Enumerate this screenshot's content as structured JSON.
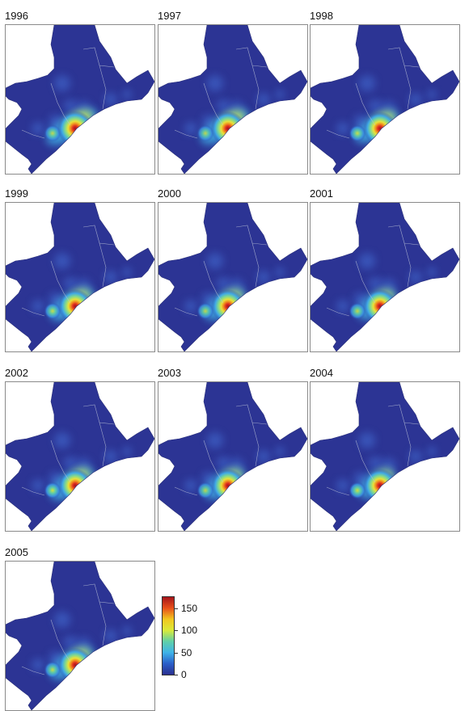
{
  "panels": [
    {
      "year": "1996",
      "hot": 1.0,
      "spread": 1.0,
      "west": 0.55,
      "westHot": 0.45
    },
    {
      "year": "1997",
      "hot": 0.97,
      "spread": 0.95,
      "west": 0.55,
      "westHot": 0.42
    },
    {
      "year": "1998",
      "hot": 0.95,
      "spread": 0.85,
      "west": 0.55,
      "westHot": 0.5
    },
    {
      "year": "1999",
      "hot": 0.96,
      "spread": 0.85,
      "west": 0.55,
      "westHot": 0.5
    },
    {
      "year": "2000",
      "hot": 0.96,
      "spread": 0.8,
      "west": 0.55,
      "westHot": 0.45
    },
    {
      "year": "2001",
      "hot": 0.96,
      "spread": 0.75,
      "west": 0.55,
      "westHot": 0.48
    },
    {
      "year": "2002",
      "hot": 0.95,
      "spread": 0.85,
      "west": 0.55,
      "westHot": 0.55
    },
    {
      "year": "2003",
      "hot": 0.95,
      "spread": 0.78,
      "west": 0.55,
      "westHot": 0.45
    },
    {
      "year": "2004",
      "hot": 0.95,
      "spread": 0.7,
      "west": 0.55,
      "westHot": 0.55
    },
    {
      "year": "2005",
      "hot": 0.97,
      "spread": 0.85,
      "west": 0.55,
      "westHot": 0.5
    }
  ],
  "legend": {
    "min": 0,
    "max": 175,
    "ticks": [
      "150",
      "100",
      "50",
      "0"
    ],
    "tickValues": [
      150,
      100,
      50,
      0
    ],
    "colors": [
      "#2a2f8f",
      "#2b5fc9",
      "#3fb3e8",
      "#5fd0a8",
      "#d9ea3a",
      "#f2c71f",
      "#e8501a",
      "#a5141a"
    ]
  }
}
